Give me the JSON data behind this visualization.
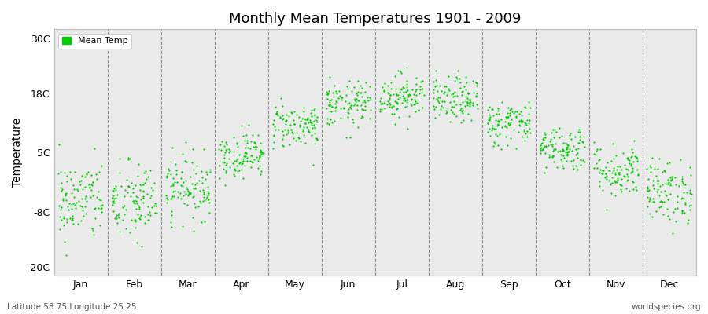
{
  "title": "Monthly Mean Temperatures 1901 - 2009",
  "ylabel": "Temperature",
  "yticks": [
    -20,
    -8,
    5,
    18,
    30
  ],
  "ytick_labels": [
    "-20C",
    "-8C",
    "5C",
    "18C",
    "30C"
  ],
  "ylim": [
    -22,
    32
  ],
  "months": [
    "Jan",
    "Feb",
    "Mar",
    "Apr",
    "May",
    "Jun",
    "Jul",
    "Aug",
    "Sep",
    "Oct",
    "Nov",
    "Dec"
  ],
  "n_years": 109,
  "mean_temps": [
    -5.5,
    -6.0,
    -2.5,
    4.5,
    11.0,
    15.5,
    17.5,
    16.5,
    11.5,
    6.0,
    1.0,
    -3.5
  ],
  "std_temps": [
    4.5,
    4.5,
    3.5,
    2.5,
    2.5,
    2.5,
    2.5,
    2.5,
    2.5,
    2.5,
    3.0,
    3.5
  ],
  "dot_color": "#00cc00",
  "dot_size": 2.5,
  "bg_color": "#ebebeb",
  "fig_bg_color": "#ffffff",
  "grid_color": "#888888",
  "legend_label": "Mean Temp",
  "subtitle_left": "Latitude 58.75 Longitude 25.25",
  "subtitle_right": "worldspecies.org",
  "seed": 42,
  "figsize": [
    9.0,
    4.0
  ],
  "dpi": 100
}
